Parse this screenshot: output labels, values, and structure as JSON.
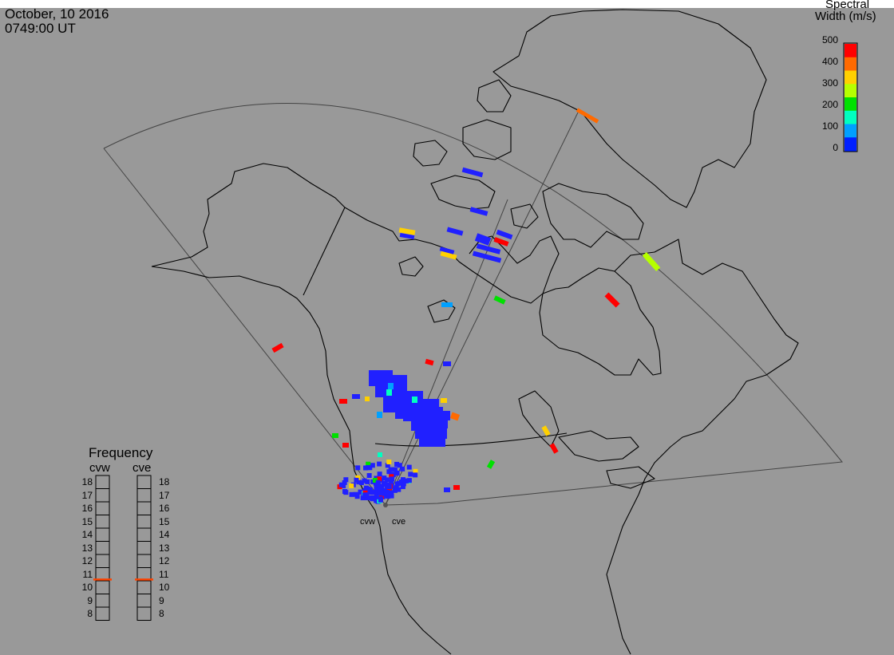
{
  "header": {
    "date": "October, 10 2016",
    "time": "0749:00 UT"
  },
  "colorbar": {
    "title_line1": "Spectral",
    "title_line2": "Width (m/s)",
    "ticks": [
      "500",
      "400",
      "300",
      "200",
      "100",
      "0"
    ],
    "colors": [
      "#ff0000",
      "#ff6a00",
      "#ffd000",
      "#b6ff00",
      "#00e000",
      "#00ffc0",
      "#00a0ff",
      "#0020ff"
    ]
  },
  "frequency_panel": {
    "title": "Frequency",
    "left_radar": "cvw",
    "right_radar": "cve",
    "ticks": [
      "18",
      "17",
      "16",
      "15",
      "14",
      "13",
      "12",
      "11",
      "10",
      "9",
      "8"
    ],
    "left_value_mhz": 10.6,
    "right_value_mhz": 10.6,
    "indicator_color": "#ff4400"
  },
  "radars": {
    "cvw": {
      "label": "cvw"
    },
    "cve": {
      "label": "cve"
    }
  },
  "colors": {
    "background": "#999999",
    "coastline": "#000000",
    "fov_outline": "#444444",
    "scatter_dominant": "#2020ff"
  }
}
